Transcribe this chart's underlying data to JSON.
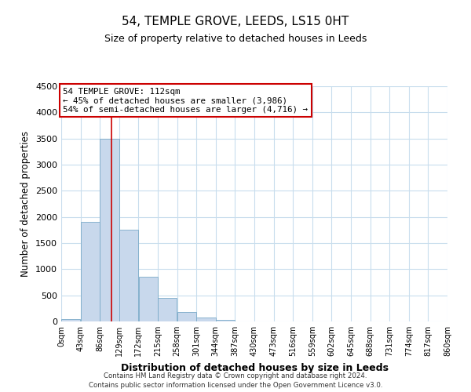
{
  "title": "54, TEMPLE GROVE, LEEDS, LS15 0HT",
  "subtitle": "Size of property relative to detached houses in Leeds",
  "xlabel": "Distribution of detached houses by size in Leeds",
  "ylabel": "Number of detached properties",
  "bar_color": "#c8d8ec",
  "bar_edge_color": "#7aaac8",
  "background_color": "#ffffff",
  "grid_color": "#c8dded",
  "bin_edges": [
    0,
    43,
    86,
    129,
    172,
    215,
    258,
    301,
    344,
    387,
    430,
    473,
    516,
    559,
    602,
    645,
    688,
    731,
    774,
    817,
    860
  ],
  "bin_labels": [
    "0sqm",
    "43sqm",
    "86sqm",
    "129sqm",
    "172sqm",
    "215sqm",
    "258sqm",
    "301sqm",
    "344sqm",
    "387sqm",
    "430sqm",
    "473sqm",
    "516sqm",
    "559sqm",
    "602sqm",
    "645sqm",
    "688sqm",
    "731sqm",
    "774sqm",
    "817sqm",
    "860sqm"
  ],
  "bar_heights": [
    40,
    1900,
    3500,
    1760,
    850,
    450,
    175,
    75,
    30,
    0,
    0,
    0,
    0,
    0,
    0,
    0,
    0,
    0,
    0,
    0
  ],
  "ylim": [
    0,
    4500
  ],
  "yticks": [
    0,
    500,
    1000,
    1500,
    2000,
    2500,
    3000,
    3500,
    4000,
    4500
  ],
  "vline_x": 112,
  "annotation_title": "54 TEMPLE GROVE: 112sqm",
  "annotation_line1": "← 45% of detached houses are smaller (3,986)",
  "annotation_line2": "54% of semi-detached houses are larger (4,716) →",
  "annotation_box_color": "#ffffff",
  "annotation_box_edge_color": "#cc0000",
  "vline_color": "#cc0000",
  "footer1": "Contains HM Land Registry data © Crown copyright and database right 2024.",
  "footer2": "Contains public sector information licensed under the Open Government Licence v3.0."
}
